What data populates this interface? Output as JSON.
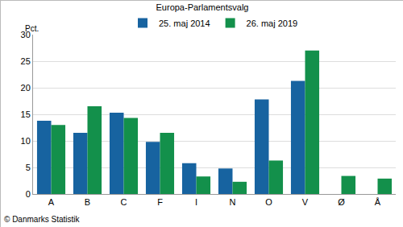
{
  "chart_data": {
    "type": "bar",
    "title": "Europa-Parlamentsvalg",
    "y_label": "Pct.",
    "source": "© Danmarks Statistik",
    "categories": [
      "A",
      "B",
      "C",
      "F",
      "I",
      "N",
      "O",
      "V",
      "Ø",
      "Å"
    ],
    "series": [
      {
        "name": "25. maj 2014",
        "color": "#1763a0",
        "values": [
          13.8,
          11.5,
          15.3,
          9.8,
          5.8,
          4.8,
          17.8,
          21.3,
          null,
          null
        ]
      },
      {
        "name": "26. maj 2019",
        "color": "#13904b",
        "values": [
          13.0,
          16.5,
          14.3,
          11.5,
          3.3,
          2.3,
          6.3,
          27.0,
          3.4,
          2.9
        ]
      }
    ],
    "ylim": [
      0,
      30
    ],
    "yticks": [
      0,
      5,
      10,
      15,
      20,
      25,
      30
    ],
    "grid": true,
    "legend": "top"
  }
}
